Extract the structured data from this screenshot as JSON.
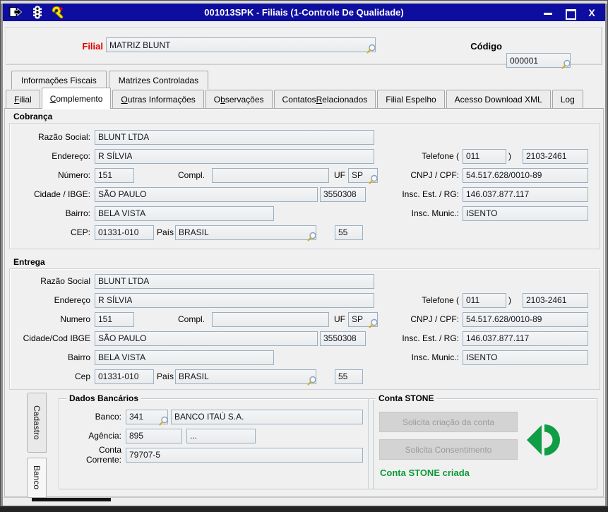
{
  "window": {
    "title": "001013SPK - Filiais (1-Controle De Qualidade)"
  },
  "header": {
    "filial_label": "Filial",
    "filial_value": "MATRIZ BLUNT",
    "codigo_label": "Código",
    "codigo_value": "000001"
  },
  "tabs_secondary": [
    {
      "label": "Informações Fiscais"
    },
    {
      "label": "Matrizes Controladas"
    }
  ],
  "tabs_main": [
    {
      "label": "Filial",
      "hotkey": 0,
      "active": false
    },
    {
      "label": "Complemento",
      "hotkey": 0,
      "active": true
    },
    {
      "label": "Outras Informações",
      "hotkey": 0,
      "active": false
    },
    {
      "label": "Observações",
      "hotkey": 1,
      "active": false
    },
    {
      "label": "Contatos Relacionados",
      "hotkey": 9,
      "active": false
    },
    {
      "label": "Filial Espelho",
      "hotkey": -1,
      "active": false
    },
    {
      "label": "Acesso Download XML",
      "hotkey": -1,
      "active": false
    },
    {
      "label": "Log",
      "hotkey": -1,
      "active": false
    }
  ],
  "cobranca": {
    "title": "Cobrança",
    "razao_label": "Razão Social:",
    "razao": "BLUNT LTDA",
    "endereco_label": "Endereço:",
    "endereco": "R SÍLVIA",
    "numero_label": "Número:",
    "numero": "151",
    "compl_label": "Compl.",
    "compl": "",
    "uf_label": "UF",
    "uf": "SP",
    "cidade_label": "Cidade / IBGE:",
    "cidade": "SÃO PAULO",
    "ibge": "3550308",
    "bairro_label": "Bairro:",
    "bairro": "BELA VISTA",
    "cep_label": "CEP:",
    "cep": "01331-010",
    "pais_label": "País",
    "pais": "BRASIL",
    "pais_cod": "55",
    "tel_label": "Telefone (",
    "tel_ddd": "011",
    "tel_close": ")",
    "tel_num": "2103-2461",
    "cnpj_label": "CNPJ / CPF:",
    "cnpj": "54.517.628/0010-89",
    "insc_est_label": "Insc. Est. / RG:",
    "insc_est": "146.037.877.117",
    "insc_mun_label": "Insc. Munic.:",
    "insc_mun": "ISENTO"
  },
  "entrega": {
    "title": "Entrega",
    "razao_label": "Razão Social",
    "razao": "BLUNT LTDA",
    "endereco_label": "Endereço",
    "endereco": "R SÍLVIA",
    "numero_label": "Numero",
    "numero": "151",
    "compl_label": "Compl.",
    "compl": "",
    "uf_label": "UF",
    "uf": "SP",
    "cidade_label": "Cidade/Cod IBGE",
    "cidade": "SÃO PAULO",
    "ibge": "3550308",
    "bairro_label": "Bairro",
    "bairro": "BELA VISTA",
    "cep_label": "Cep",
    "cep": "01331-010",
    "pais_label": "País",
    "pais": "BRASIL",
    "pais_cod": "55",
    "tel_label": "Telefone (",
    "tel_ddd": "011",
    "tel_close": ")",
    "tel_num": "2103-2461",
    "cnpj_label": "CNPJ / CPF:",
    "cnpj": "54.517.628/0010-89",
    "insc_est_label": "Insc. Est. / RG:",
    "insc_est": "146.037.877.117",
    "insc_mun_label": "Insc. Munic.:",
    "insc_mun": "ISENTO"
  },
  "side_tabs": [
    {
      "label": "Cadastro",
      "active": false
    },
    {
      "label": "Banco",
      "active": true
    }
  ],
  "dados_bancarios": {
    "title": "Dados Bancários",
    "banco_label": "Banco:",
    "banco_codigo": "341",
    "banco_nome": "BANCO ITAÚ S.A.",
    "agencia_label": "Agência:",
    "agencia": "895",
    "agencia_dv": "...",
    "conta_label": "Conta Corrente:",
    "conta": "79707-5"
  },
  "conta_stone": {
    "title": "Conta STONE",
    "btn_criar": "Solicita criação da conta",
    "btn_consentimento": "Solicita Consentimento",
    "status": "Conta STONE criada"
  },
  "colors": {
    "titlebar": "#0d0d9f",
    "label_red": "#e10000",
    "status_green": "#0c9a39",
    "logo_green": "#0f9d45",
    "field_border": "#9ab0c2"
  }
}
